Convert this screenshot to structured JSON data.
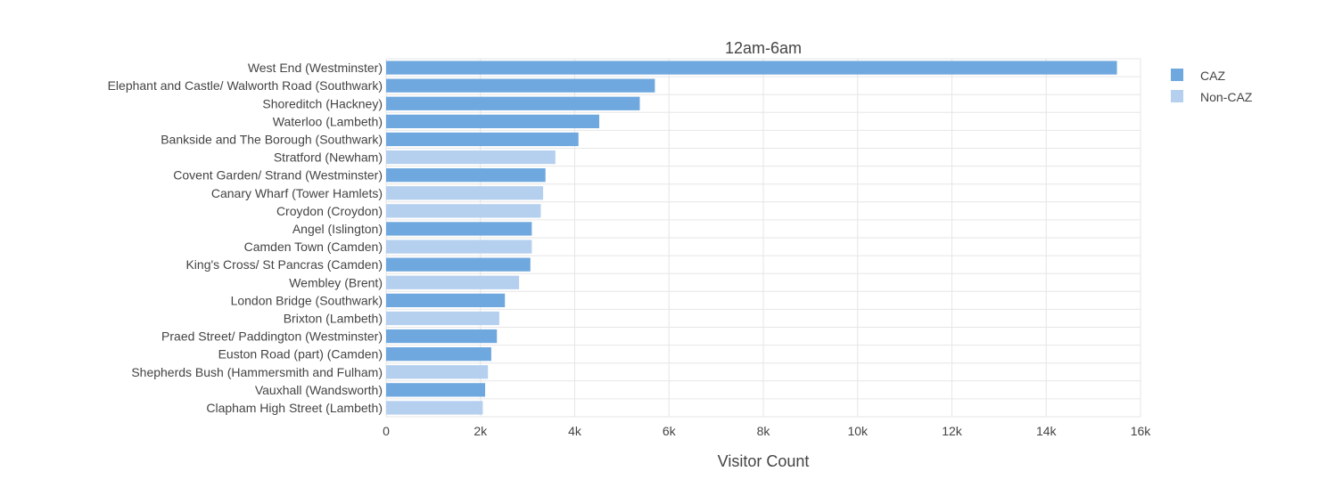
{
  "chart_data": {
    "type": "bar",
    "orientation": "horizontal",
    "title": "12am-6am",
    "xlabel": "Visitor Count",
    "ylabel": "",
    "xlim": [
      0,
      16000
    ],
    "xticks": [
      0,
      2000,
      4000,
      6000,
      8000,
      10000,
      12000,
      14000,
      16000
    ],
    "xtick_labels": [
      "0",
      "2k",
      "4k",
      "6k",
      "8k",
      "10k",
      "12k",
      "14k",
      "16k"
    ],
    "grid": true,
    "legend_position": "top-right",
    "colors": {
      "CAZ": "#6fa8df",
      "Non-CAZ": "#b4d0ee"
    },
    "series": [
      {
        "name": "CAZ"
      },
      {
        "name": "Non-CAZ"
      }
    ],
    "categories": [
      "West End (Westminster)",
      "Elephant and Castle/ Walworth Road (Southwark)",
      "Shoreditch (Hackney)",
      "Waterloo (Lambeth)",
      "Bankside and The Borough (Southwark)",
      "Stratford (Newham)",
      "Covent Garden/ Strand (Westminster)",
      "Canary Wharf (Tower Hamlets)",
      "Croydon (Croydon)",
      "Angel (Islington)",
      "Camden Town (Camden)",
      "King's Cross/ St Pancras (Camden)",
      "Wembley (Brent)",
      "London Bridge (Southwark)",
      "Brixton (Lambeth)",
      "Praed Street/ Paddington (Westminster)",
      "Euston Road (part) (Camden)",
      "Shepherds Bush (Hammersmith and Fulham)",
      "Vauxhall (Wandsworth)",
      "Clapham High Street (Lambeth)"
    ],
    "values": [
      15500,
      5700,
      5380,
      4520,
      4080,
      3590,
      3380,
      3330,
      3280,
      3090,
      3090,
      3060,
      2820,
      2520,
      2400,
      2350,
      2230,
      2160,
      2100,
      2050
    ],
    "groups": [
      "CAZ",
      "CAZ",
      "CAZ",
      "CAZ",
      "CAZ",
      "Non-CAZ",
      "CAZ",
      "Non-CAZ",
      "Non-CAZ",
      "CAZ",
      "Non-CAZ",
      "CAZ",
      "Non-CAZ",
      "CAZ",
      "Non-CAZ",
      "CAZ",
      "CAZ",
      "Non-CAZ",
      "CAZ",
      "Non-CAZ"
    ]
  }
}
